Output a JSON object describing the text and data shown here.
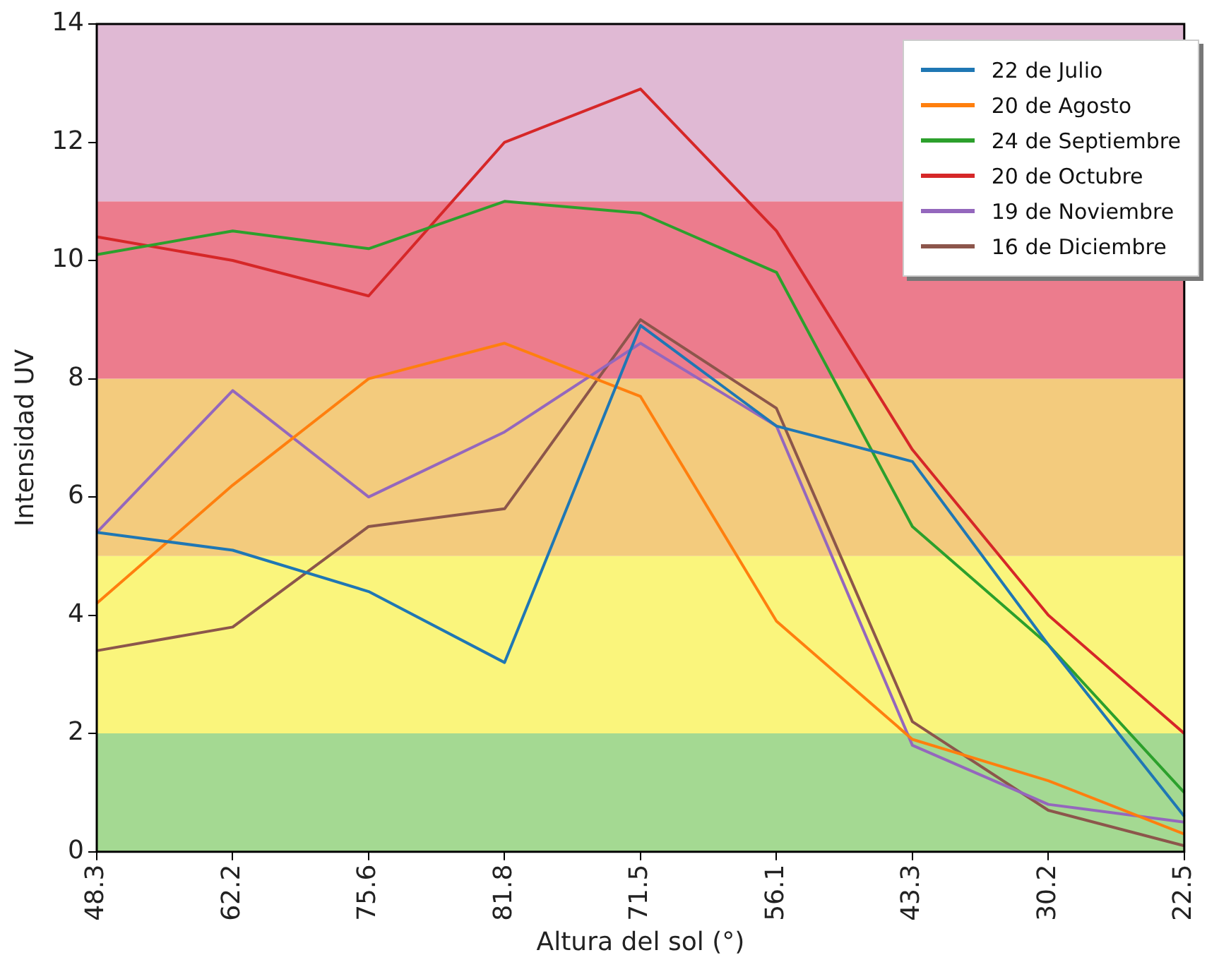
{
  "chart_data": {
    "type": "line",
    "xlabel": "Altura del sol (°)",
    "ylabel": "Intensidad UV",
    "categories": [
      "48.3",
      "62.2",
      "75.6",
      "81.8",
      "71.5",
      "56.1",
      "43.3",
      "30.2",
      "22.5"
    ],
    "series": [
      {
        "name": "22 de Julio",
        "color": "#1f77b4",
        "values": [
          5.4,
          5.1,
          4.4,
          3.2,
          8.9,
          7.2,
          6.6,
          3.5,
          0.6
        ]
      },
      {
        "name": "20 de Agosto",
        "color": "#ff7f0e",
        "values": [
          4.2,
          6.2,
          8.0,
          8.6,
          7.7,
          3.9,
          1.9,
          1.2,
          0.3
        ]
      },
      {
        "name": "24 de Septiembre",
        "color": "#2ca02c",
        "values": [
          10.1,
          10.5,
          10.2,
          11.0,
          10.8,
          9.8,
          5.5,
          3.5,
          1.0
        ]
      },
      {
        "name": "20 de Octubre",
        "color": "#d62728",
        "values": [
          10.4,
          10.0,
          9.4,
          12.0,
          12.9,
          10.5,
          6.8,
          4.0,
          2.0
        ]
      },
      {
        "name": "19 de Noviembre",
        "color": "#9467bd",
        "values": [
          5.4,
          7.8,
          6.0,
          7.1,
          8.6,
          7.2,
          1.8,
          0.8,
          0.5
        ]
      },
      {
        "name": "16 de Diciembre",
        "color": "#8c564b",
        "values": [
          3.4,
          3.8,
          5.5,
          5.8,
          9.0,
          7.5,
          2.2,
          0.7,
          0.1
        ]
      }
    ],
    "ylim": [
      0,
      14
    ],
    "yticks": [
      0,
      2,
      4,
      6,
      8,
      10,
      12,
      14
    ],
    "bands": [
      {
        "axis": "y",
        "from": 0,
        "to": 2,
        "color": "#a4d992"
      },
      {
        "axis": "y",
        "from": 2,
        "to": 5,
        "color": "#faf57c"
      },
      {
        "axis": "y",
        "from": 5,
        "to": 8,
        "color": "#f3cb7d"
      },
      {
        "axis": "y",
        "from": 8,
        "to": 11,
        "color": "#ec7c8d"
      },
      {
        "axis": "y",
        "from": 11,
        "to": 14,
        "color": "#e0b9d4"
      }
    ],
    "grid": false,
    "legend": "top right",
    "marker": "none",
    "line_style": "solid"
  }
}
